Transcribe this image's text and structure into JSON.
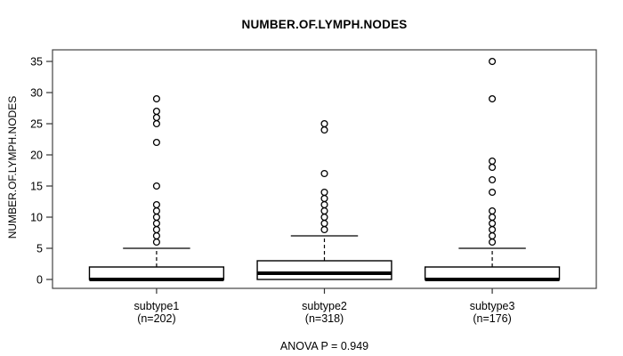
{
  "page": {
    "background": "#ffffff",
    "foreground": "#000000"
  },
  "chart_data": {
    "type": "boxplot",
    "title": "NUMBER.OF.LYMPH.NODES",
    "ylabel": "NUMBER.OF.LYMPH.NODES",
    "annotation": "ANOVA P = 0.949",
    "yticks": [
      0,
      5,
      10,
      15,
      20,
      25,
      30,
      35
    ],
    "ylim": [
      -1.43,
      36.86
    ],
    "xlim": [
      0.38,
      3.62
    ],
    "grid": false,
    "legend": "none",
    "box_stroke_color": "#000000",
    "box_fill_color": "#ffffff",
    "groups": [
      {
        "label": "subtype1",
        "sublabel": "(n=202)",
        "n": 202,
        "position": 1,
        "q1": 0,
        "median": 0,
        "q3": 2,
        "whisker_low": 0,
        "whisker_high": 5,
        "outliers": [
          6,
          7,
          8,
          9,
          10,
          11,
          12,
          15,
          22,
          25,
          26,
          27,
          29
        ]
      },
      {
        "label": "subtype2",
        "sublabel": "(n=318)",
        "n": 318,
        "position": 2,
        "q1": 0,
        "median": 1,
        "q3": 3,
        "whisker_low": 0,
        "whisker_high": 7,
        "outliers": [
          8,
          9,
          10,
          11,
          12,
          13,
          14,
          17,
          24,
          25
        ]
      },
      {
        "label": "subtype3",
        "sublabel": "(n=176)",
        "n": 176,
        "position": 3,
        "q1": 0,
        "median": 0,
        "q3": 2,
        "whisker_low": 0,
        "whisker_high": 5,
        "outliers": [
          6,
          7,
          8,
          9,
          10,
          11,
          14,
          16,
          18,
          19,
          29,
          35
        ]
      }
    ]
  }
}
